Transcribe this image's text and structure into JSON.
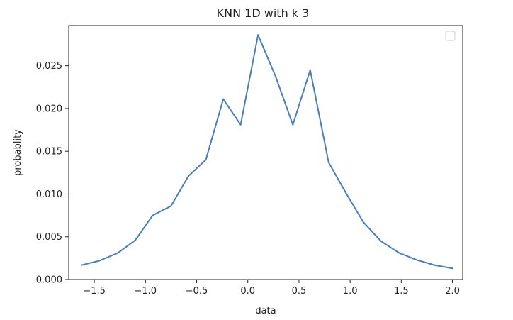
{
  "chart_data": {
    "type": "line",
    "title": "KNN 1D with k 3",
    "xlabel": "data",
    "ylabel": "probablity",
    "xlim": [
      -1.75,
      2.1
    ],
    "ylim": [
      0,
      0.0297
    ],
    "xticks": [
      -1.5,
      -1.0,
      -0.5,
      0.0,
      0.5,
      1.0,
      1.5,
      2.0
    ],
    "xtick_labels": [
      "−1.5",
      "−1.0",
      "−0.5",
      "0.0",
      "0.5",
      "1.0",
      "1.5",
      "2.0"
    ],
    "yticks": [
      0.0,
      0.005,
      0.01,
      0.015,
      0.02,
      0.025
    ],
    "ytick_labels": [
      "0.000",
      "0.005",
      "0.010",
      "0.015",
      "0.020",
      "0.025"
    ],
    "grid": false,
    "legend": "top-right (empty)",
    "series": [
      {
        "color": "#4a7fb5",
        "x": [
          -1.62,
          -1.45,
          -1.27,
          -1.1,
          -0.93,
          -0.75,
          -0.58,
          -0.41,
          -0.24,
          -0.07,
          0.1,
          0.27,
          0.44,
          0.61,
          0.79,
          0.96,
          1.13,
          1.3,
          1.48,
          1.65,
          1.82,
          2.0
        ],
        "y": [
          0.0017,
          0.0022,
          0.0031,
          0.0046,
          0.0075,
          0.0086,
          0.0121,
          0.014,
          0.0211,
          0.0181,
          0.0286,
          0.0238,
          0.0181,
          0.0245,
          0.0137,
          0.0101,
          0.0067,
          0.0045,
          0.0031,
          0.0023,
          0.0017,
          0.0013
        ]
      }
    ]
  }
}
